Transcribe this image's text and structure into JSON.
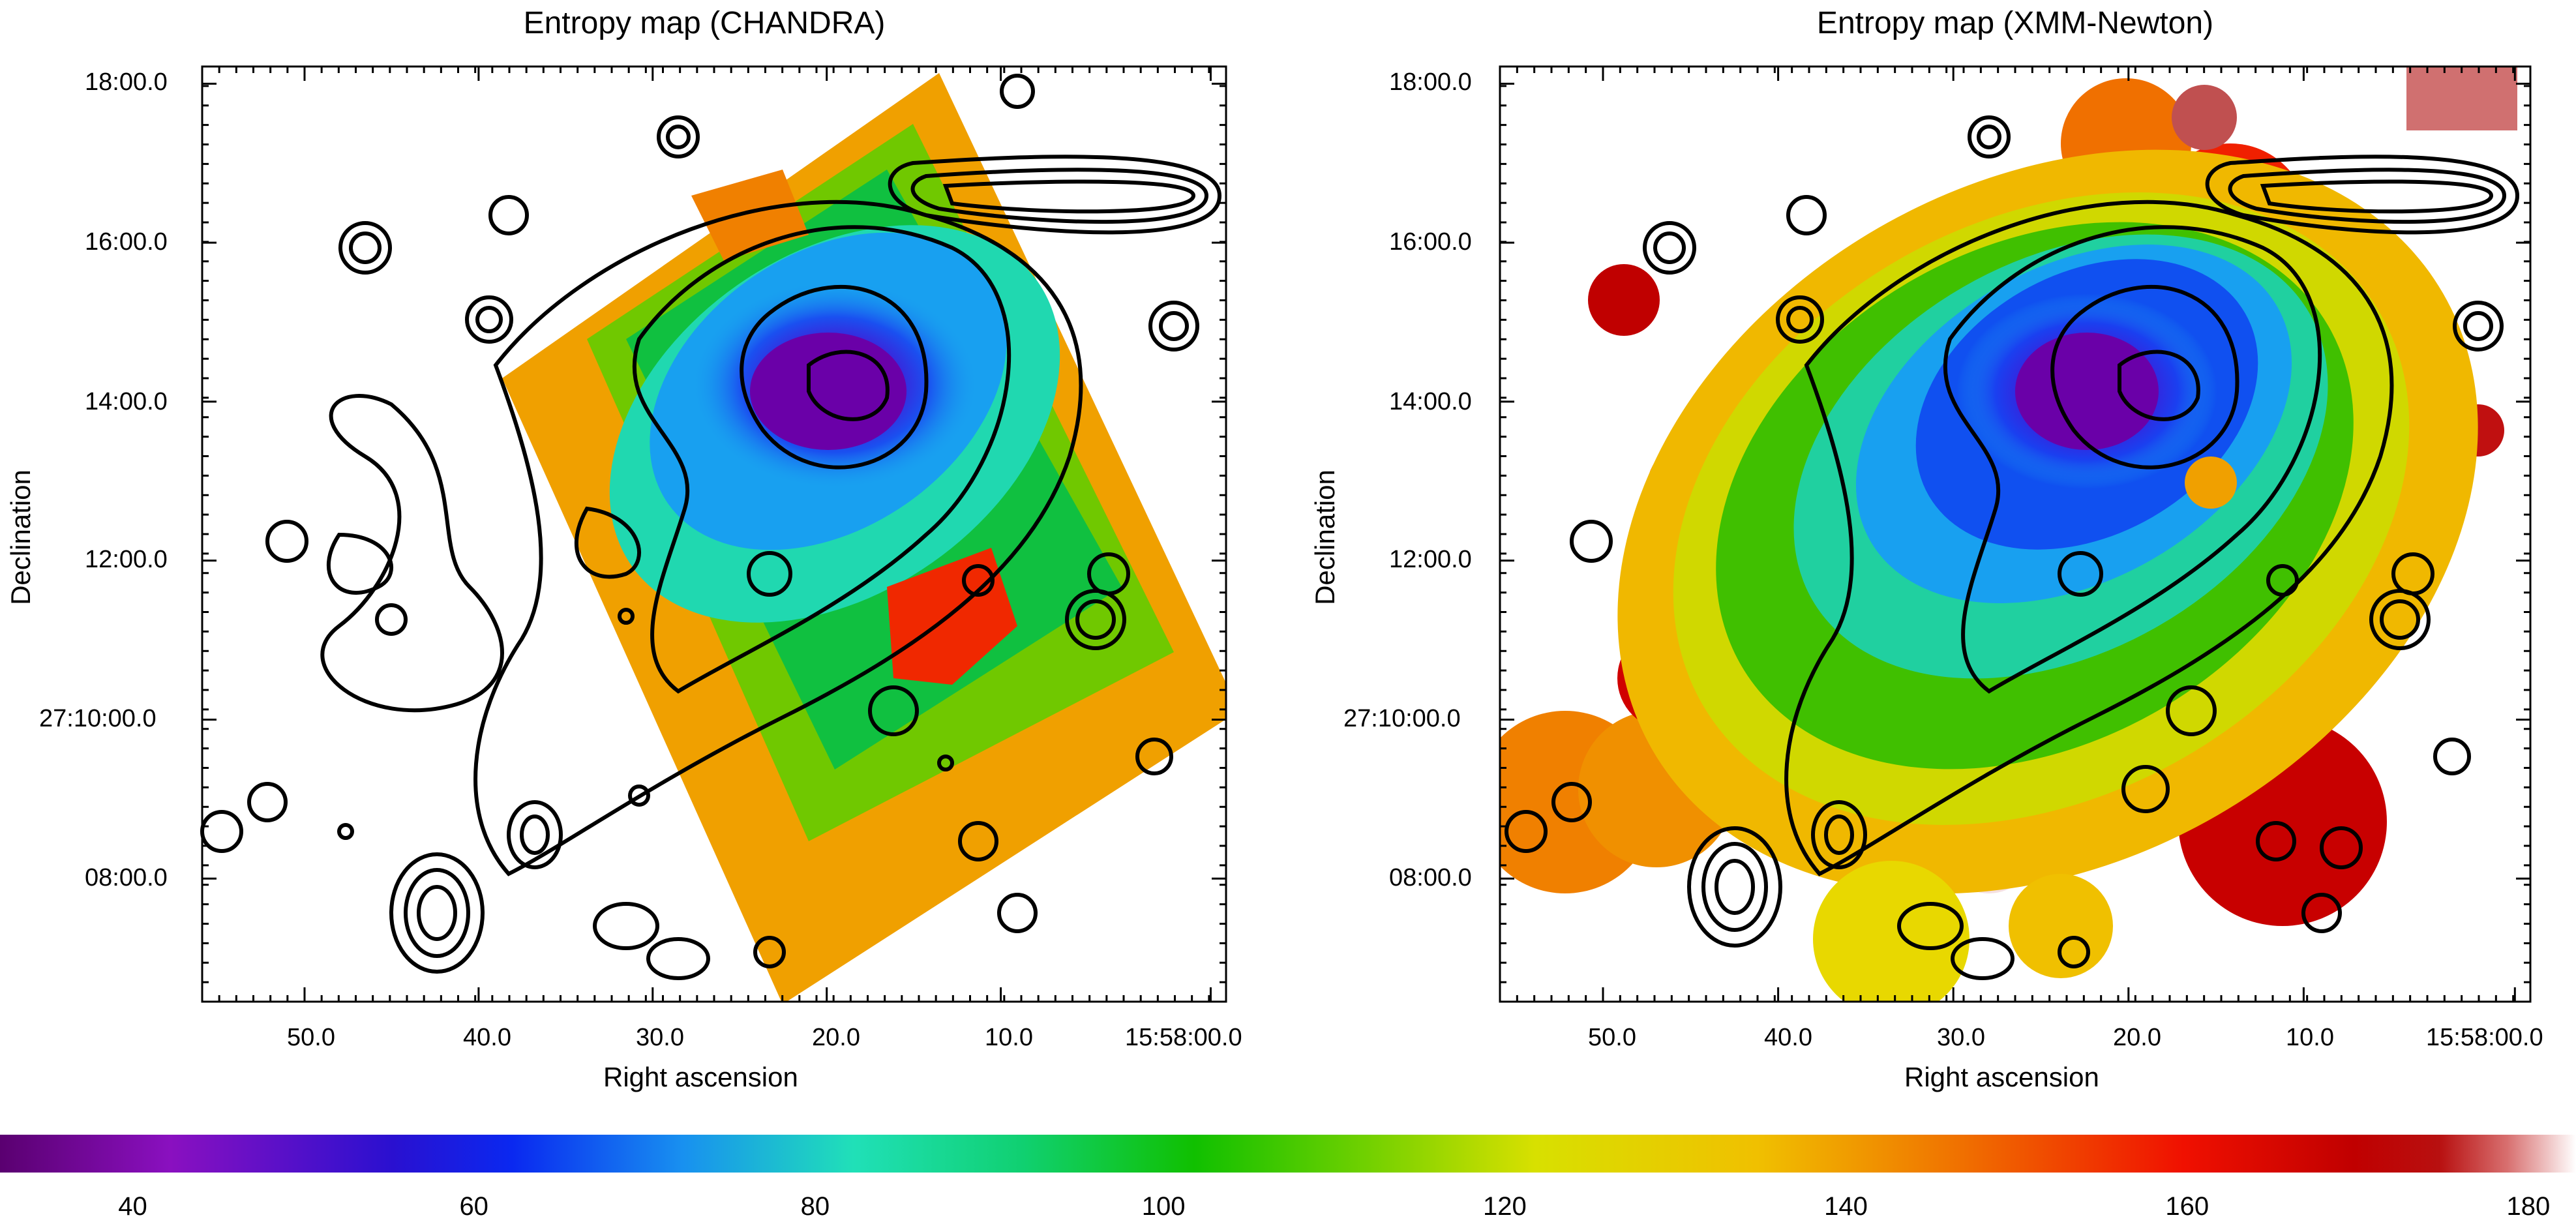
{
  "chart_data": [
    {
      "type": "heatmap",
      "title": "Entropy map (CHANDRA)",
      "xlabel": "Right ascension",
      "ylabel": "Declination",
      "x_ticks": [
        "50.0",
        "40.0",
        "30.0",
        "20.0",
        "10.0",
        "15:58:00.0"
      ],
      "y_ticks": [
        "18:00.0",
        "16:00.0",
        "14:00.0",
        "12:00.0",
        "27:10:00.0",
        "08:00.0"
      ],
      "overlay": "contours"
    },
    {
      "type": "heatmap",
      "title": "Entropy map (XMM-Newton)",
      "xlabel": "Right ascension",
      "ylabel": "Declination",
      "x_ticks": [
        "50.0",
        "40.0",
        "30.0",
        "20.0",
        "10.0",
        "15:58:00.0"
      ],
      "y_ticks": [
        "18:00.0",
        "16:00.0",
        "14:00.0",
        "12:00.0",
        "27:10:00.0",
        "08:00.0"
      ],
      "overlay": "contours"
    }
  ],
  "colorbar": {
    "range": [
      32,
      183
    ],
    "ticks": [
      "40",
      "60",
      "80",
      "100",
      "120",
      "140",
      "160",
      "180"
    ],
    "tick_values": [
      40,
      60,
      80,
      100,
      120,
      140,
      160,
      180
    ],
    "stops": [
      {
        "v": 32,
        "c": "#5a0070"
      },
      {
        "v": 42,
        "c": "#8a10c0"
      },
      {
        "v": 55,
        "c": "#2a10d0"
      },
      {
        "v": 62,
        "c": "#0a28f0"
      },
      {
        "v": 72,
        "c": "#1890f0"
      },
      {
        "v": 82,
        "c": "#20e0b8"
      },
      {
        "v": 92,
        "c": "#10d070"
      },
      {
        "v": 102,
        "c": "#10c000"
      },
      {
        "v": 112,
        "c": "#70d000"
      },
      {
        "v": 122,
        "c": "#d8e000"
      },
      {
        "v": 135,
        "c": "#f0c000"
      },
      {
        "v": 147,
        "c": "#f07000"
      },
      {
        "v": 160,
        "c": "#f01000"
      },
      {
        "v": 170,
        "c": "#c00000"
      },
      {
        "v": 175,
        "c": "#b81010"
      },
      {
        "v": 179,
        "c": "#d87070"
      },
      {
        "v": 183,
        "c": "#ffffff"
      }
    ]
  }
}
